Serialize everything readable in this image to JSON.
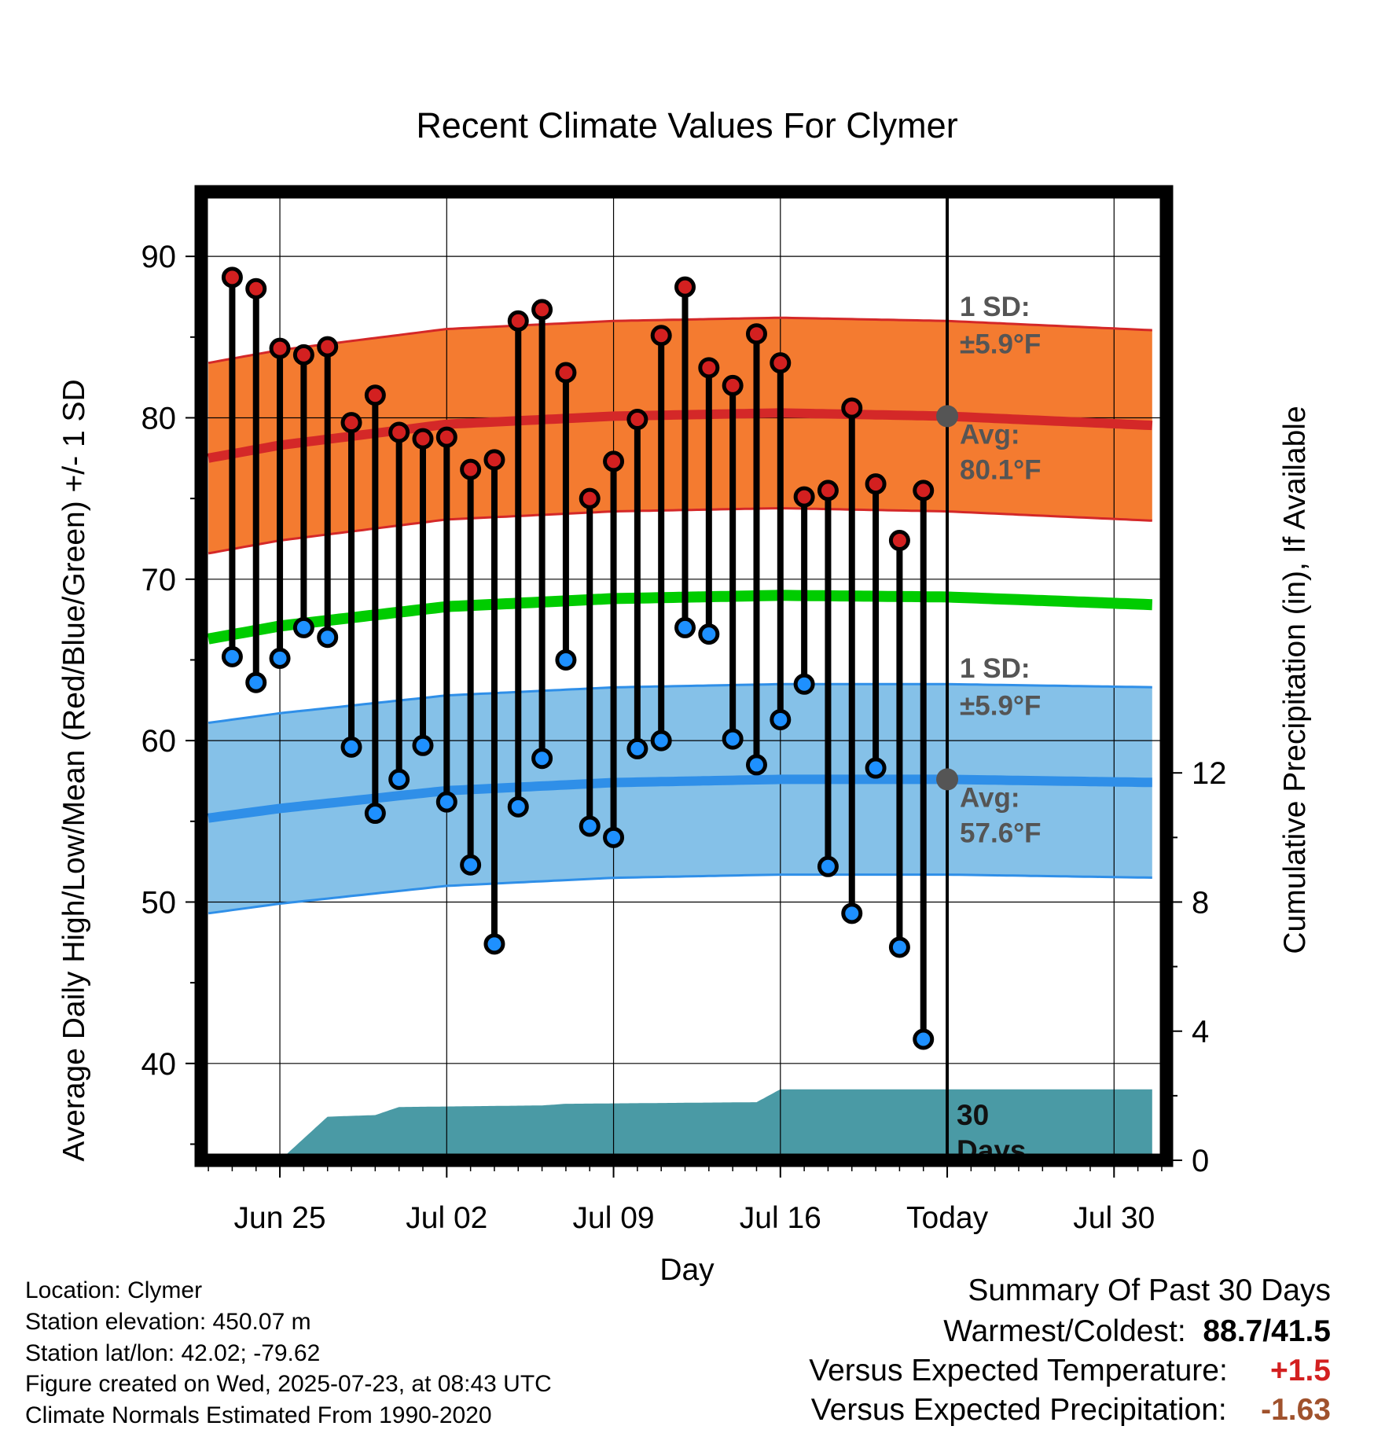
{
  "chart_data": {
    "type": "line",
    "title": "Recent Climate Values For Clymer",
    "xlabel": "Day",
    "ylabel": "Average Daily High/Low/Mean (Red/Blue/Green) +/- 1 SD",
    "y2label": "Cumulative Precipitation (in), If Available",
    "ylim": [
      34,
      94
    ],
    "y2lim": [
      0,
      30
    ],
    "yticks": [
      40,
      50,
      60,
      70,
      80,
      90
    ],
    "y2ticks": [
      0,
      4,
      8,
      12
    ],
    "xlim": [
      -3.3,
      37.2
    ],
    "x_ticks": [
      {
        "day": 0,
        "label": "Jun 25"
      },
      {
        "day": 7,
        "label": "Jul 02"
      },
      {
        "day": 14,
        "label": "Jul 09"
      },
      {
        "day": 21,
        "label": "Jul 16"
      },
      {
        "day": 28,
        "label": "Today"
      },
      {
        "day": 35,
        "label": "Jul 30"
      }
    ],
    "today_day": 28,
    "normal_high": {
      "days": [
        -3,
        0,
        7,
        14,
        21,
        28,
        37
      ],
      "avg": [
        77.5,
        78.3,
        79.6,
        80.1,
        80.3,
        80.1,
        79.5
      ],
      "sd": 5.9
    },
    "normal_low": {
      "days": [
        -3,
        0,
        7,
        14,
        21,
        28,
        37
      ],
      "avg": [
        55.2,
        55.8,
        56.9,
        57.4,
        57.6,
        57.6,
        57.4
      ],
      "sd": 5.9
    },
    "normal_mean": {
      "days": [
        -3,
        0,
        7,
        14,
        21,
        28,
        37
      ],
      "avg": [
        66.3,
        67.1,
        68.3,
        68.8,
        69.0,
        68.9,
        68.4
      ]
    },
    "series": [
      {
        "name": "Daily High",
        "color": "#d32020",
        "days": [
          -2,
          -1,
          0,
          1,
          2,
          3,
          4,
          5,
          6,
          7,
          8,
          9,
          10,
          11,
          12,
          13,
          14,
          15,
          16,
          17,
          18,
          19,
          20,
          21,
          22,
          23,
          24,
          25,
          26,
          27
        ],
        "values": [
          88.7,
          88.0,
          84.3,
          83.9,
          84.4,
          79.7,
          81.4,
          79.1,
          78.7,
          78.8,
          76.8,
          77.4,
          86.0,
          86.7,
          82.8,
          75.0,
          77.3,
          79.9,
          85.1,
          88.1,
          83.1,
          82.0,
          85.2,
          83.4,
          75.1,
          75.5,
          80.6,
          75.9,
          72.4,
          75.5
        ]
      },
      {
        "name": "Daily Low",
        "color": "#1e90ff",
        "days": [
          -2,
          -1,
          0,
          1,
          2,
          3,
          4,
          5,
          6,
          7,
          8,
          9,
          10,
          11,
          12,
          13,
          14,
          15,
          16,
          17,
          18,
          19,
          20,
          21,
          22,
          23,
          24,
          25,
          26,
          27
        ],
        "values": [
          65.2,
          63.6,
          65.1,
          67.0,
          66.4,
          59.6,
          55.5,
          57.6,
          59.7,
          56.2,
          52.3,
          47.4,
          55.9,
          58.9,
          65.0,
          54.7,
          54.0,
          59.5,
          60.0,
          67.0,
          66.6,
          60.1,
          58.5,
          61.3,
          63.5,
          52.2,
          49.3,
          58.3,
          47.2,
          41.5
        ]
      }
    ],
    "precip": {
      "color": "#4a9aa5",
      "days": [
        0,
        2,
        4,
        5,
        11,
        12,
        20,
        21,
        37
      ],
      "values": [
        0,
        1.35,
        1.4,
        1.65,
        1.7,
        1.75,
        1.8,
        2.2,
        2.2
      ]
    },
    "annotations": {
      "high_sd": "1 SD:",
      "high_sd_value": "±5.9°F",
      "high_avg": "Avg:",
      "high_avg_value": "80.1°F",
      "low_sd": "1 SD:",
      "low_sd_value": "±5.9°F",
      "low_avg": "Avg:",
      "low_avg_value": "57.6°F",
      "days_num": "30",
      "days_word": "Days"
    },
    "colors": {
      "high_band": "#f47b30",
      "high_edge": "#d42828",
      "low_band": "#85c1e8",
      "low_edge": "#2f8fe8",
      "mean_line": "#00cc00",
      "avg_marker": "#555555",
      "annotation_text": "#555555"
    }
  },
  "footer": {
    "location": "Location: Clymer",
    "elevation": "Station elevation: 450.07 m",
    "latlon": "Station lat/lon: 42.02; -79.62",
    "created": "Figure created on Wed, 2025-07-23, at 08:43 UTC",
    "normals": "Climate Normals Estimated From 1990-2020"
  },
  "summary": {
    "heading": "Summary Of Past 30 Days",
    "warm_cold_label": "Warmest/Coldest:",
    "warm_cold_value": "88.7/41.5",
    "temp_label": "Versus Expected Temperature:",
    "temp_value": "+1.5",
    "temp_color": "#d32020",
    "precip_label": "Versus Expected Precipitation:",
    "precip_value": "-1.63",
    "precip_color": "#a0522d"
  }
}
